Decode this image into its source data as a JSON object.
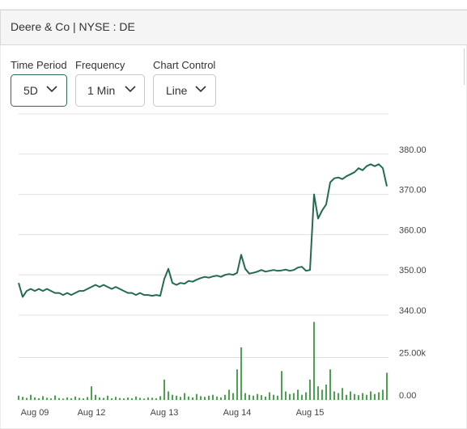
{
  "header": {
    "title": "Deere & Co | NYSE : DE"
  },
  "controls": [
    {
      "label": "Time Period",
      "value": "5D"
    },
    {
      "label": "Frequency",
      "value": "1 Min"
    },
    {
      "label": "Chart Control",
      "value": "Line"
    }
  ],
  "chart_data": {
    "type": "line",
    "categories": [
      null,
      null,
      null,
      null,
      "Aug 09",
      null,
      null,
      null,
      null,
      null,
      null,
      null,
      null,
      null,
      null,
      null,
      null,
      null,
      "Aug 12",
      null,
      null,
      null,
      null,
      null,
      null,
      null,
      null,
      null,
      null,
      null,
      null,
      null,
      null,
      null,
      null,
      null,
      "Aug 13",
      null,
      null,
      null,
      null,
      null,
      null,
      null,
      null,
      null,
      null,
      null,
      null,
      null,
      null,
      null,
      null,
      null,
      "Aug 14",
      null,
      null,
      null,
      null,
      null,
      null,
      null,
      null,
      null,
      null,
      null,
      null,
      null,
      null,
      null,
      null,
      null,
      "Aug 15",
      null,
      null,
      null,
      null,
      null,
      null,
      null,
      null,
      null,
      null,
      null,
      null,
      null,
      null,
      null,
      null,
      null,
      null,
      null
    ],
    "series": [
      {
        "color": "#236b4e",
        "values": [
          348,
          344.5,
          346,
          346.5,
          346,
          346.5,
          346,
          346.5,
          346,
          345.5,
          345.5,
          345,
          345.5,
          345,
          345.5,
          346,
          346,
          346.5,
          347,
          347.5,
          347,
          347.5,
          347,
          346.5,
          347,
          346.5,
          346,
          345.5,
          345.5,
          345,
          345.5,
          345,
          345,
          344.8,
          345,
          344.8,
          349,
          351.5,
          348,
          347.5,
          348,
          347.8,
          348.5,
          348.3,
          348.8,
          349.2,
          349.5,
          349.3,
          349.6,
          349.8,
          349.5,
          350,
          350.2,
          350,
          350.5,
          355,
          351.5,
          350.3,
          350.5,
          350.8,
          351.2,
          350.8,
          351,
          351.2,
          351,
          351.1,
          351.3,
          351,
          351.2,
          351.8,
          352,
          351,
          351.2,
          370,
          364,
          366,
          367.5,
          373,
          374,
          374.2,
          373.8,
          374.5,
          375,
          375.5,
          376.5,
          376,
          377,
          377.5,
          377,
          377.5,
          376.5,
          372
        ]
      },
      {
        "type": "bar",
        "axis": "y2",
        "color": "#1f8b24",
        "values": [
          2500,
          1800,
          1200,
          3000,
          1500,
          1000,
          2200,
          1300,
          900,
          2600,
          1100,
          800,
          1500,
          1000,
          2000,
          1200,
          900,
          1700,
          8000,
          3000,
          1500,
          1200,
          2500,
          1000,
          1800,
          1100,
          900,
          1400,
          1000,
          2000,
          1200,
          800,
          1500,
          1300,
          1000,
          2200,
          12000,
          5000,
          3000,
          2500,
          1800,
          4000,
          2000,
          1500,
          3500,
          2200,
          1800,
          2500,
          3000,
          2000,
          1500,
          3000,
          6000,
          4000,
          18000,
          31000,
          4000,
          3000,
          2500,
          3500,
          2800,
          2000,
          4500,
          3000,
          2500,
          17000,
          5000,
          3500,
          4000,
          6000,
          3000,
          4500,
          12000,
          46000,
          8000,
          6000,
          9000,
          18000,
          5000,
          4000,
          7000,
          3000,
          5000,
          3500,
          2800,
          4000,
          3000,
          5000,
          3500,
          4500,
          6000,
          16000
        ]
      }
    ],
    "ylim": [
      340,
      390
    ],
    "yticks": [
      {
        "value": 340,
        "label": "340.00"
      },
      {
        "value": 350,
        "label": "350.00"
      },
      {
        "value": 360,
        "label": "360.00"
      },
      {
        "value": 370,
        "label": "370.00"
      },
      {
        "value": 380,
        "label": "380.00"
      }
    ],
    "y2lim": [
      0,
      50000
    ],
    "y2ticks": [
      {
        "value": 0,
        "label": "0.00"
      },
      {
        "value": 25000,
        "label": "25.00k"
      }
    ],
    "grid": true
  }
}
